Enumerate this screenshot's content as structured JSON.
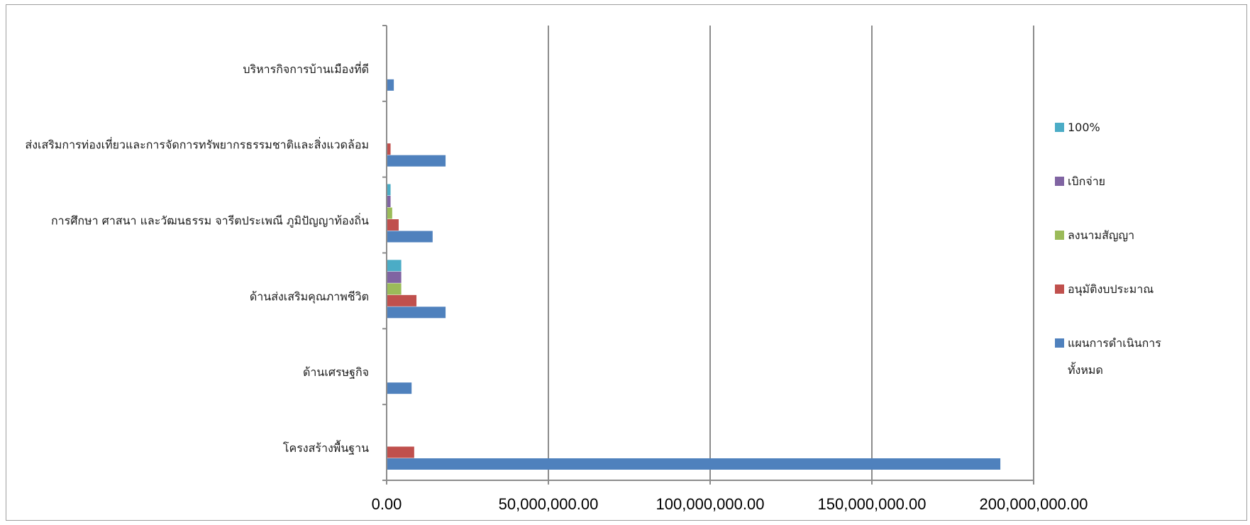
{
  "chart_data": {
    "type": "bar",
    "orientation": "horizontal",
    "categories": [
      "โครงสร้างพื้นฐาน",
      "ด้านเศรษฐกิจ",
      "ด้านส่งเสริมคุณภาพชีวิต",
      "การศึกษา ศาสนา และวัฒนธรรม จารีตประเพณี ภูมิปัญญาท้องถิ่น",
      "ส่งเสริมการท่องเที่ยวและการจัดการทรัพยากรธรรมชาติและสิ่งแวดล้อม",
      "บริหารกิจการบ้านเมืองที่ดี"
    ],
    "series": [
      {
        "name": "แผนการดำเนินการทั้งหมด",
        "legend_lines": [
          "แผนการดำเนินการ",
          "ทั้งหมด"
        ],
        "color": "#4F81BD",
        "values": [
          189500000,
          7500000,
          18000000,
          14000000,
          18000000,
          2000000
        ]
      },
      {
        "name": "อนุมัติงบประมาณ",
        "legend_lines": [
          "อนุมัติงบประมาณ"
        ],
        "color": "#C0504D",
        "values": [
          8300000,
          0,
          9000000,
          3500000,
          1000000,
          0
        ]
      },
      {
        "name": "ลงนามสัญญา",
        "legend_lines": [
          "ลงนามสัญญา"
        ],
        "color": "#9BBB59",
        "values": [
          0,
          0,
          4300000,
          1500000,
          0,
          0
        ]
      },
      {
        "name": "เบิกจ่าย",
        "legend_lines": [
          "เบิกจ่าย"
        ],
        "color": "#8064A2",
        "values": [
          0,
          0,
          4300000,
          1000000,
          0,
          0
        ]
      },
      {
        "name": "100%",
        "legend_lines": [
          "100%"
        ],
        "color": "#4BACC6",
        "values": [
          0,
          0,
          4300000,
          1000000,
          0,
          0
        ]
      }
    ],
    "xlim": [
      0,
      200000000
    ],
    "ticks": [
      0,
      50000000,
      100000000,
      150000000,
      200000000
    ],
    "tick_labels": [
      "0.00",
      "50,000,000.00",
      "100,000,000.00",
      "150,000,000.00",
      "200,000,000.00"
    ],
    "grid": true,
    "legend_position": "right",
    "title": "",
    "xlabel": "",
    "ylabel": ""
  }
}
